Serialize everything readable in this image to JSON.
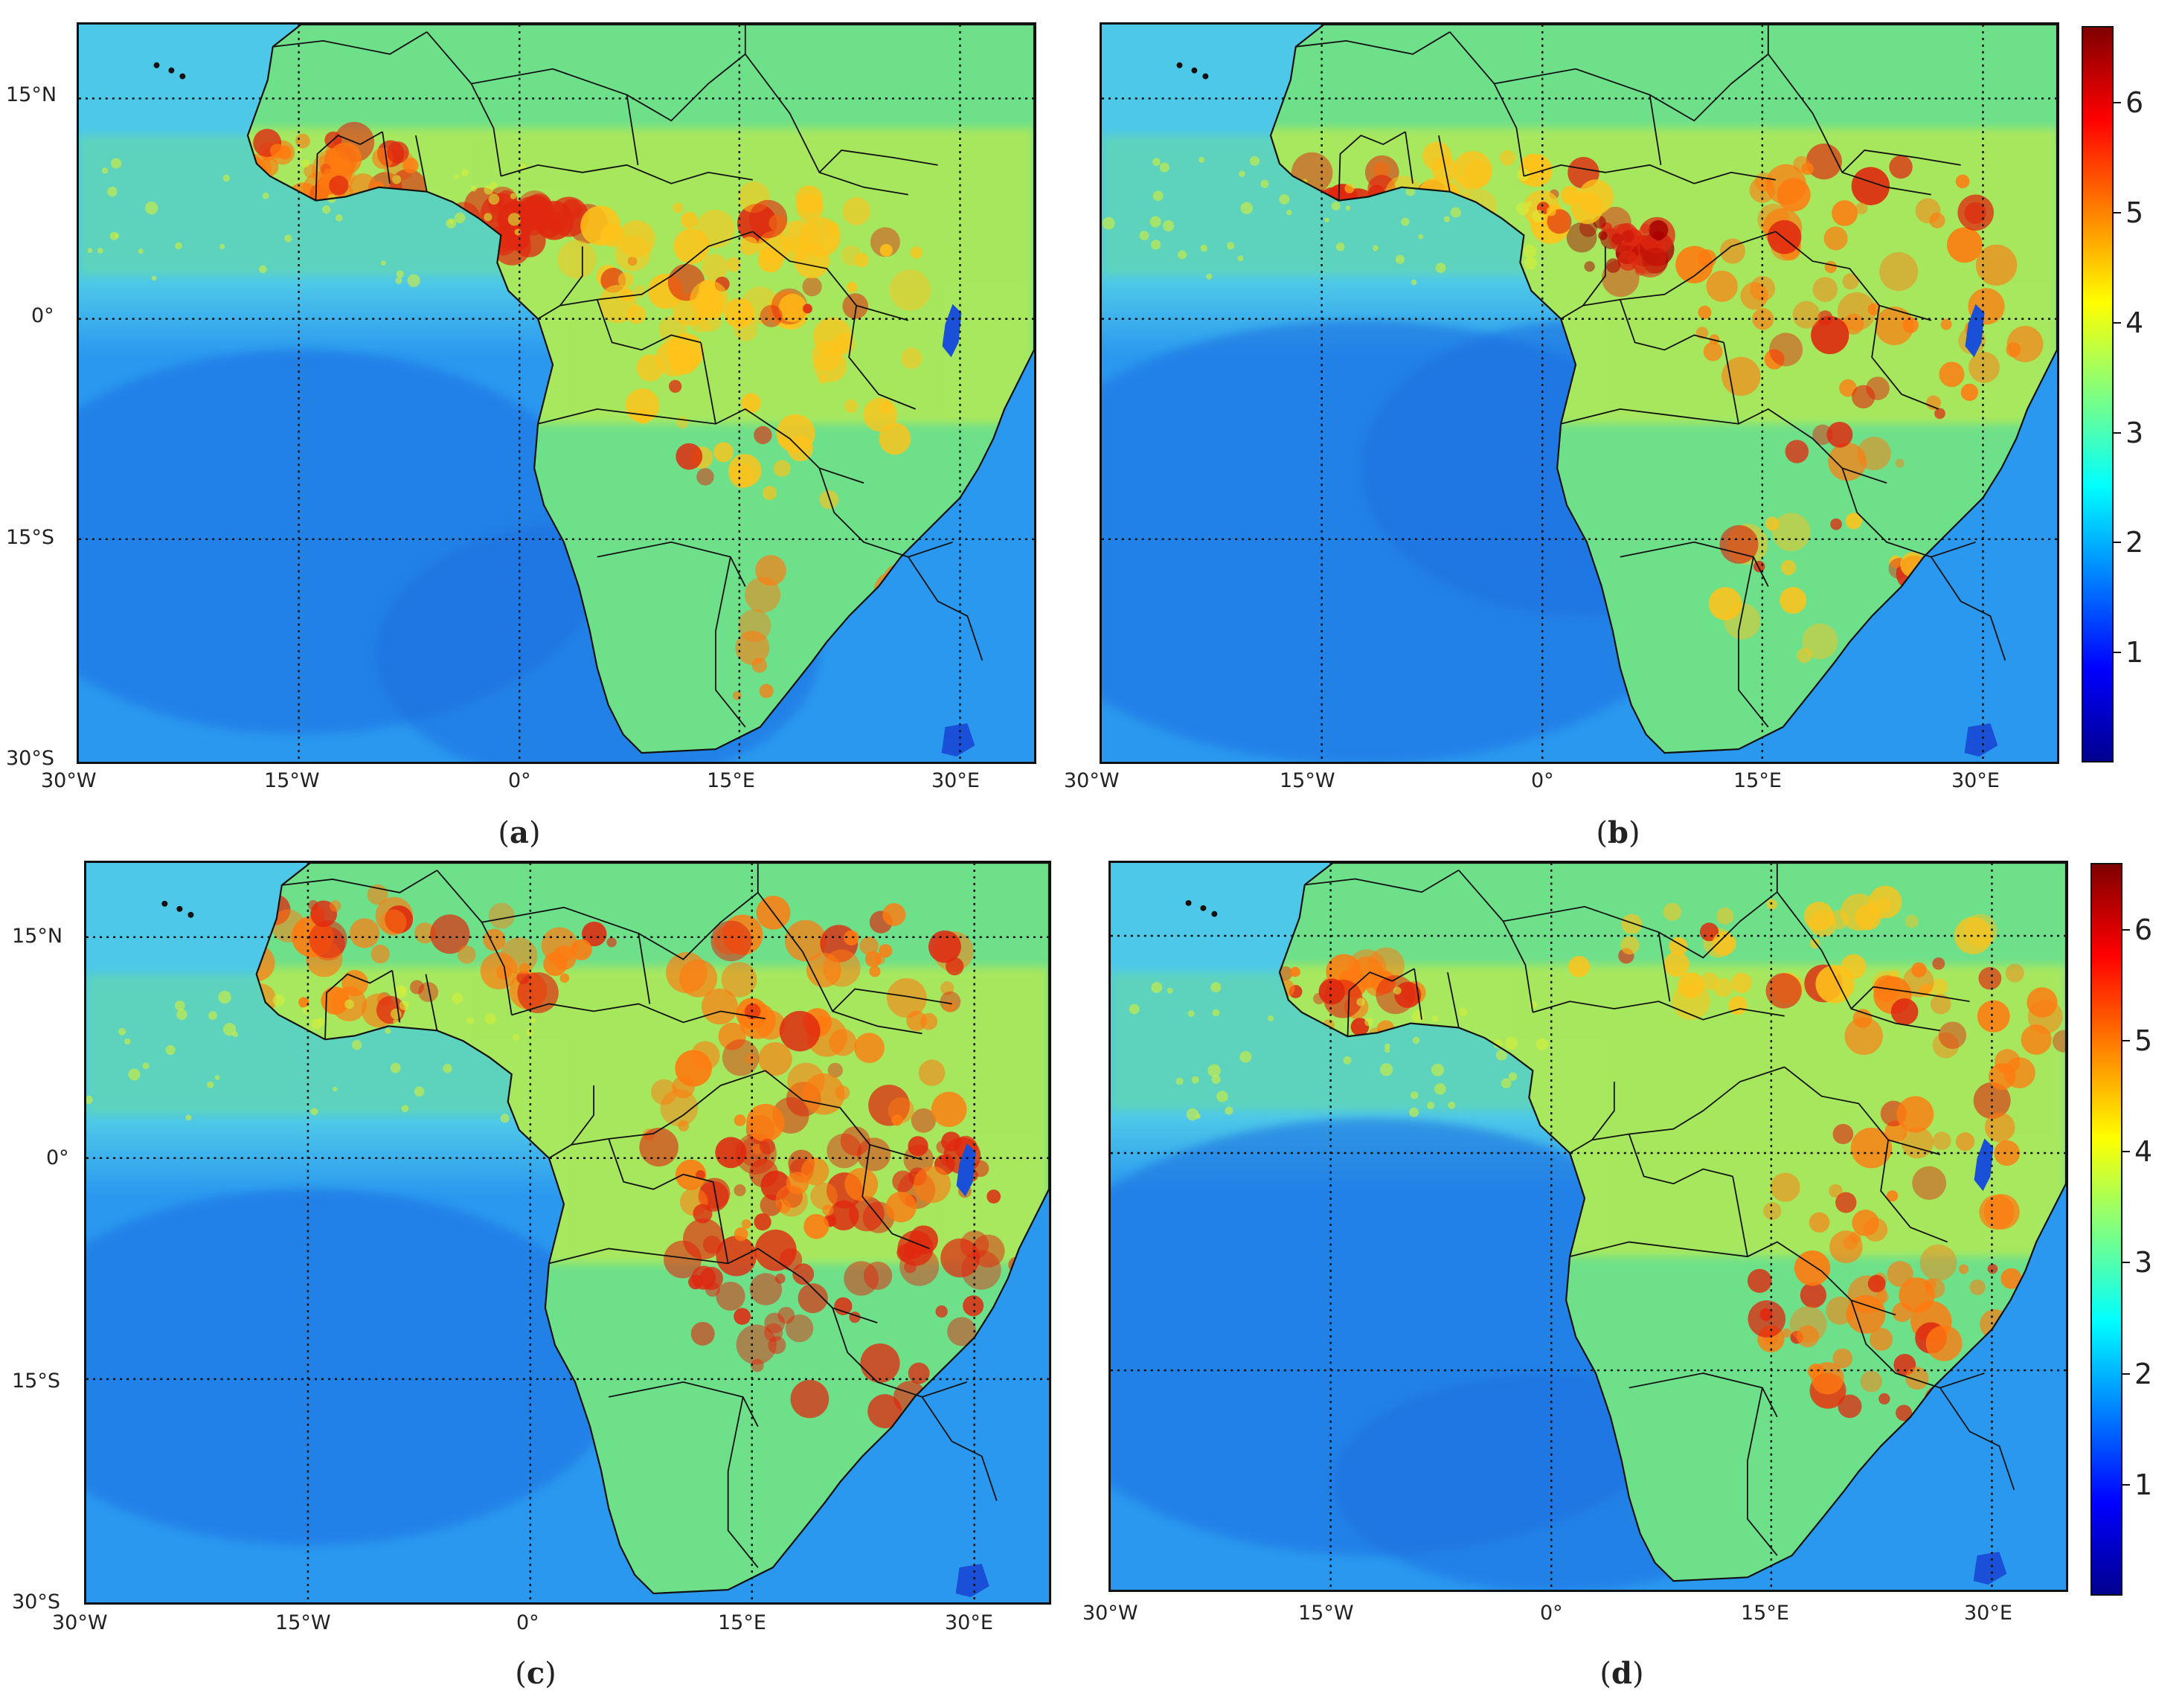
{
  "map_ticks": {
    "lon": [
      "30°W",
      "15°W",
      "0°",
      "15°E",
      "30°E"
    ],
    "lat": [
      "15°N",
      "0°",
      "15°S",
      "30°S"
    ]
  },
  "panels": [
    {
      "id": "a",
      "caption_open": "(",
      "caption_letter": "a",
      "caption_close": ")",
      "layers": "a"
    },
    {
      "id": "b",
      "caption_open": "(",
      "caption_letter": "b",
      "caption_close": ")",
      "layers": "b"
    },
    {
      "id": "c",
      "caption_open": "(",
      "caption_letter": "c",
      "caption_close": ")",
      "layers": "c"
    },
    {
      "id": "d",
      "caption_open": "(",
      "caption_letter": "d",
      "caption_close": ")",
      "layers": "d"
    }
  ],
  "colorbars": [
    {
      "ticks": [
        "1",
        "2",
        "3",
        "4",
        "5",
        "6"
      ],
      "range": [
        0,
        6.7
      ]
    },
    {
      "ticks": [
        "1",
        "2",
        "3",
        "4",
        "5",
        "6"
      ],
      "range": [
        0,
        6.6
      ]
    }
  ],
  "colors": {
    "ocean_deep": "#1f6fe0",
    "ocean": "#2a98ef",
    "coastal": "#4ec8e8",
    "land_low": "#6fe08a",
    "land_mid": "#d6ee3a",
    "land_high": "#ffc21a",
    "hot": "#ff7a10",
    "very_hot": "#e02810",
    "max": "#a80000",
    "lake": "#1a4fd8",
    "borders": "#111111",
    "grid": "#111111"
  }
}
